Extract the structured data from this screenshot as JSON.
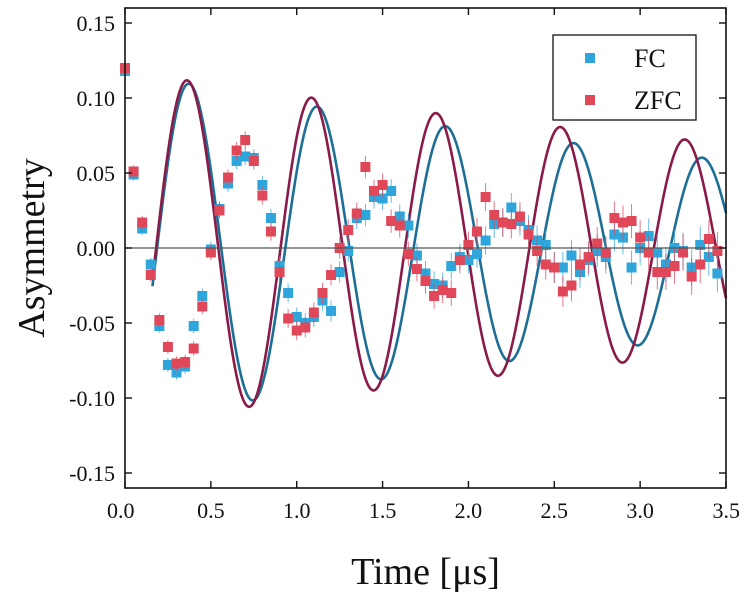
{
  "chart_data": {
    "type": "scatter",
    "xlabel": "Time [μs]",
    "ylabel": "Asymmetry",
    "xlim": [
      0.0,
      3.5
    ],
    "ylim": [
      -0.16,
      0.16
    ],
    "x_ticks": [
      0.0,
      0.5,
      1.0,
      1.5,
      2.0,
      2.5,
      3.0,
      3.5
    ],
    "x_tick_labels": [
      "0.0",
      "0.5",
      "1.0",
      "1.5",
      "2.0",
      "2.5",
      "3.0",
      "3.5"
    ],
    "y_ticks": [
      0.15,
      0.1,
      0.05,
      0.0,
      -0.05,
      -0.1,
      -0.15
    ],
    "y_tick_labels": [
      "0.15",
      "0.10",
      "0.05",
      "0.00",
      "-0.05",
      "-0.10",
      "-0.15"
    ],
    "grid": false,
    "zero_line": true,
    "legend": "top-right",
    "colors": {
      "FC": "#2fa6db",
      "ZFC": "#e0485a",
      "FC_fit": "#1d6f96",
      "ZFC_fit": "#8a1a48"
    },
    "series": [
      {
        "name": "FC",
        "x": [
          0.0,
          0.05,
          0.1,
          0.15,
          0.2,
          0.25,
          0.3,
          0.35,
          0.4,
          0.45,
          0.5,
          0.55,
          0.6,
          0.65,
          0.7,
          0.75,
          0.8,
          0.85,
          0.9,
          0.95,
          1.0,
          1.05,
          1.1,
          1.15,
          1.2,
          1.25,
          1.3,
          1.35,
          1.4,
          1.45,
          1.5,
          1.55,
          1.6,
          1.65,
          1.7,
          1.75,
          1.8,
          1.85,
          1.9,
          1.95,
          2.0,
          2.05,
          2.1,
          2.15,
          2.2,
          2.25,
          2.3,
          2.35,
          2.4,
          2.45,
          2.5,
          2.55,
          2.6,
          2.65,
          2.7,
          2.75,
          2.8,
          2.85,
          2.9,
          2.95,
          3.0,
          3.05,
          3.1,
          3.15,
          3.2,
          3.25,
          3.3,
          3.35,
          3.4,
          3.45
        ],
        "y": [
          0.118,
          0.049,
          0.013,
          -0.011,
          -0.052,
          -0.078,
          -0.083,
          -0.079,
          -0.052,
          -0.032,
          -0.001,
          0.026,
          0.043,
          0.058,
          0.061,
          0.06,
          0.042,
          0.02,
          -0.012,
          -0.03,
          -0.046,
          -0.05,
          -0.046,
          -0.035,
          -0.042,
          -0.016,
          -0.002,
          0.02,
          0.022,
          0.034,
          0.033,
          0.038,
          0.021,
          0.015,
          -0.005,
          -0.017,
          -0.024,
          -0.025,
          -0.012,
          -0.006,
          -0.008,
          -0.004,
          0.005,
          0.016,
          0.017,
          0.027,
          0.018,
          0.012,
          0.005,
          0.002,
          -0.013,
          -0.013,
          -0.005,
          -0.016,
          -0.008,
          -0.002,
          -0.006,
          0.009,
          0.007,
          -0.013,
          0.0,
          0.008,
          -0.003,
          -0.011,
          0.0,
          -0.002,
          -0.013,
          0.002,
          -0.006,
          -0.017
        ],
        "fit": {
          "A": 0.118,
          "omega": 8.41,
          "lambda": 0.2,
          "t0": 0.16,
          "t1": 3.5
        }
      },
      {
        "name": "ZFC",
        "x": [
          0.0,
          0.05,
          0.1,
          0.15,
          0.2,
          0.25,
          0.3,
          0.35,
          0.4,
          0.45,
          0.5,
          0.55,
          0.6,
          0.65,
          0.7,
          0.75,
          0.8,
          0.85,
          0.9,
          0.95,
          1.0,
          1.05,
          1.1,
          1.15,
          1.2,
          1.25,
          1.3,
          1.35,
          1.4,
          1.45,
          1.5,
          1.55,
          1.6,
          1.65,
          1.7,
          1.75,
          1.8,
          1.85,
          1.9,
          1.95,
          2.0,
          2.05,
          2.1,
          2.15,
          2.2,
          2.25,
          2.3,
          2.35,
          2.4,
          2.45,
          2.5,
          2.55,
          2.6,
          2.65,
          2.7,
          2.75,
          2.8,
          2.85,
          2.9,
          2.95,
          3.0,
          3.05,
          3.1,
          3.15,
          3.2,
          3.25,
          3.3,
          3.35,
          3.4,
          3.45
        ],
        "y": [
          0.12,
          0.051,
          0.017,
          -0.018,
          -0.048,
          -0.066,
          -0.077,
          -0.076,
          -0.067,
          -0.039,
          -0.003,
          0.025,
          0.047,
          0.065,
          0.072,
          0.058,
          0.035,
          0.011,
          -0.016,
          -0.047,
          -0.055,
          -0.053,
          -0.043,
          -0.03,
          -0.018,
          0.0,
          0.012,
          0.023,
          0.054,
          0.038,
          0.042,
          0.018,
          0.015,
          -0.004,
          -0.014,
          -0.022,
          -0.032,
          -0.028,
          -0.03,
          -0.008,
          0.002,
          0.011,
          0.034,
          0.022,
          0.017,
          0.016,
          0.021,
          0.009,
          -0.002,
          -0.011,
          -0.013,
          -0.029,
          -0.025,
          -0.011,
          -0.006,
          0.003,
          -0.003,
          0.02,
          0.017,
          0.018,
          0.007,
          -0.003,
          -0.016,
          -0.016,
          -0.012,
          -0.003,
          -0.019,
          -0.011,
          0.006,
          -0.002
        ],
        "fit": {
          "A": 0.118,
          "omega": 8.67,
          "lambda": 0.15,
          "t0": 0.16,
          "t1": 3.5
        }
      }
    ]
  }
}
